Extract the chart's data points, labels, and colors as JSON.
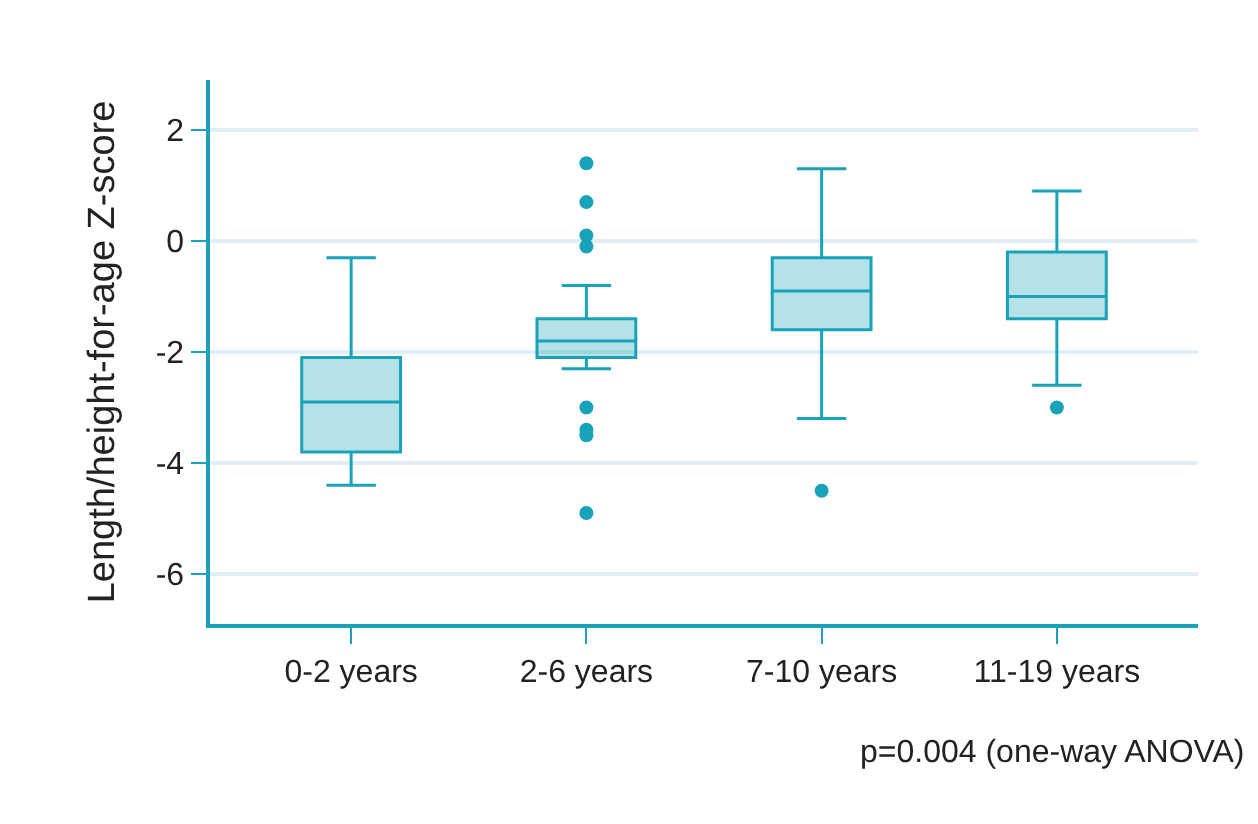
{
  "chart_data": {
    "type": "box",
    "ylabel": "Length/height-for-age Z-score",
    "categories": [
      "0-2 years",
      "2-6 years",
      "7-10 years",
      "11-19 years"
    ],
    "boxes": [
      {
        "low": -4.4,
        "q1": -3.8,
        "median": -2.9,
        "q3": -2.1,
        "high": -0.3
      },
      {
        "low": -2.3,
        "q1": -2.1,
        "median": -1.8,
        "q3": -1.4,
        "high": -0.8,
        "outliers": [
          1.4,
          0.7,
          0.1,
          -0.1,
          -3.0,
          -3.4,
          -3.5,
          -4.9
        ]
      },
      {
        "low": -3.2,
        "q1": -1.6,
        "median": -0.9,
        "q3": -0.3,
        "high": 1.3,
        "outliers": [
          -4.5
        ]
      },
      {
        "low": -2.6,
        "q1": -1.4,
        "median": -1.0,
        "q3": -0.2,
        "high": 0.9,
        "outliers": [
          -3.0
        ]
      }
    ],
    "color": "#1aa3b8",
    "ylim": [
      -6.9,
      2.9
    ],
    "yticks": [
      -6,
      -4,
      -2,
      0,
      2
    ],
    "grid": "y",
    "annotations": [
      "p=0.004 (one-way ANOVA)"
    ]
  }
}
